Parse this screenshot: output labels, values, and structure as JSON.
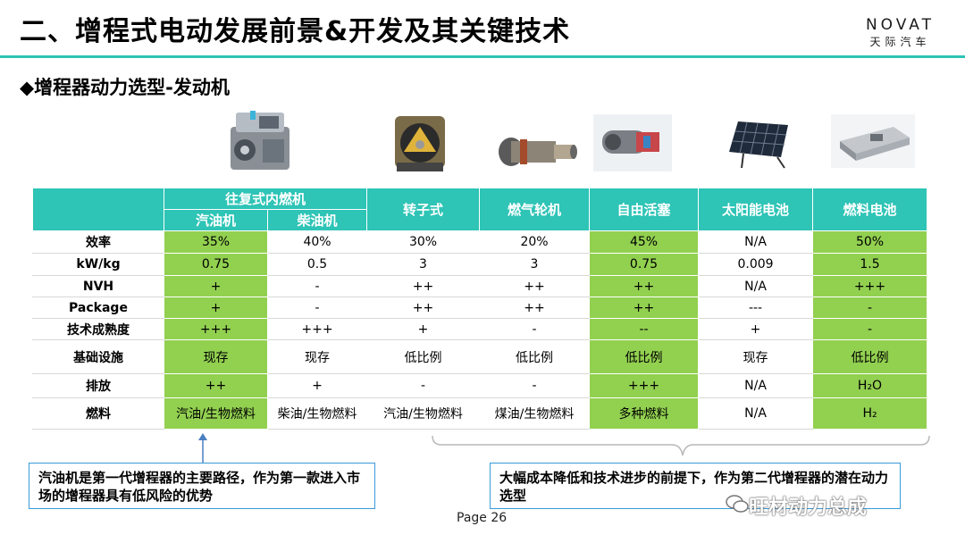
{
  "title": "二、增程式电动发展前景&开发及其关键技术",
  "logo": {
    "en": "NOVAT",
    "zh": "天际汽车"
  },
  "subtitle": "◆增程器动力选型-发动机",
  "table": {
    "group_header": "往复式内燃机",
    "headers": [
      "汽油机",
      "柴油机",
      "转子式",
      "燃气轮机",
      "自由活塞",
      "太阳能电池",
      "燃料电池"
    ],
    "rows": [
      {
        "label": "效率",
        "cells": [
          "35%",
          "40%",
          "30%",
          "20%",
          "45%",
          "N/A",
          "50%"
        ]
      },
      {
        "label": "kW/kg",
        "cells": [
          "0.75",
          "0.5",
          "3",
          "3",
          "0.75",
          "0.009",
          "1.5"
        ]
      },
      {
        "label": "NVH",
        "cells": [
          "+",
          "-",
          "++",
          "++",
          "++",
          "N/A",
          "+++"
        ]
      },
      {
        "label": "Package",
        "cells": [
          "+",
          "-",
          "++",
          "++",
          "++",
          "---",
          "-"
        ]
      },
      {
        "label": "技术成熟度",
        "cells": [
          "+++",
          "+++",
          "+",
          "-",
          "--",
          "+",
          "-"
        ]
      },
      {
        "label": "基础设施",
        "cells": [
          "现存",
          "现存",
          "低比例",
          "低比例",
          "低比例",
          "现存",
          "低比例"
        ]
      },
      {
        "label": "排放",
        "cells": [
          "++",
          "+",
          "-",
          "-",
          "+++",
          "N/A",
          "H₂O"
        ]
      },
      {
        "label": "燃料",
        "cells": [
          "汽油/生物燃料",
          "柴油/生物燃料",
          "汽油/生物燃料",
          "煤油/生物燃料",
          "多种燃料",
          "N/A",
          "H₂"
        ]
      }
    ]
  },
  "notes": {
    "left": "汽油机是第一代增程器的主要路径，作为第一款进入市场的增程器具有低风险的优势",
    "right": "大幅成本降低和技术进步的前提下，作为第二代增程器的潜在动力选型"
  },
  "page_label": "Page  26",
  "watermark": "旺材动力总成"
}
